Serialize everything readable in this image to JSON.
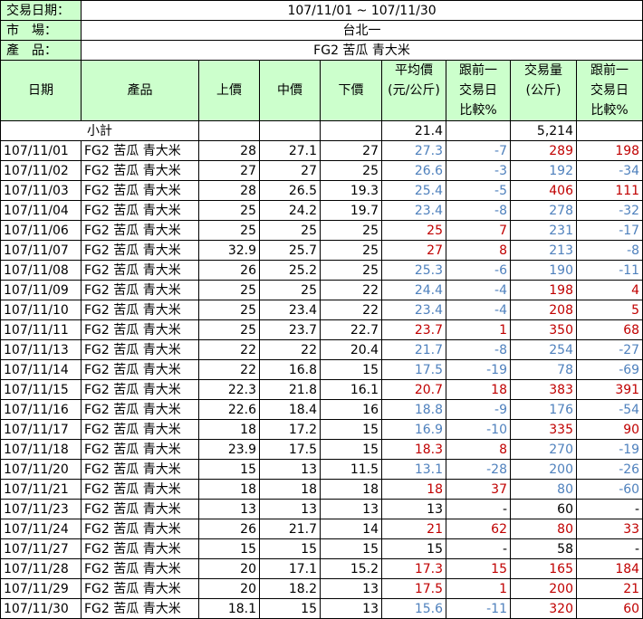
{
  "meta": {
    "date_label": "交易日期：",
    "date_value": "107/11/01 ~ 107/11/30",
    "market_label": "市　場：",
    "market_value": "台北一",
    "product_label": "產　品：",
    "product_value": "FG2 苦瓜 青大米"
  },
  "headers": {
    "date": "日期",
    "product": "產品",
    "high": "上價",
    "mid": "中價",
    "low": "下價",
    "avg": [
      "平均價",
      "(元/公斤)"
    ],
    "avg_change": [
      "跟前一",
      "交易日",
      "比較%"
    ],
    "volume": [
      "交易量",
      "(公斤)"
    ],
    "vol_change": [
      "跟前一",
      "交易日",
      "比較%"
    ]
  },
  "subtotal": {
    "label": "小計",
    "avg": "21.4",
    "volume": "5,214"
  },
  "rows": [
    {
      "date": "107/11/01",
      "product": "FG2 苦瓜 青大米",
      "high": "28",
      "mid": "27.1",
      "low": "27",
      "avg": "27.3",
      "avg_chg": "-7",
      "vol": "289",
      "vol_chg": "198"
    },
    {
      "date": "107/11/02",
      "product": "FG2 苦瓜 青大米",
      "high": "27",
      "mid": "27",
      "low": "25",
      "avg": "26.6",
      "avg_chg": "-3",
      "vol": "192",
      "vol_chg": "-34"
    },
    {
      "date": "107/11/03",
      "product": "FG2 苦瓜 青大米",
      "high": "28",
      "mid": "26.5",
      "low": "19.3",
      "avg": "25.4",
      "avg_chg": "-5",
      "vol": "406",
      "vol_chg": "111"
    },
    {
      "date": "107/11/04",
      "product": "FG2 苦瓜 青大米",
      "high": "25",
      "mid": "24.2",
      "low": "19.7",
      "avg": "23.4",
      "avg_chg": "-8",
      "vol": "278",
      "vol_chg": "-32"
    },
    {
      "date": "107/11/06",
      "product": "FG2 苦瓜 青大米",
      "high": "25",
      "mid": "25",
      "low": "25",
      "avg": "25",
      "avg_chg": "7",
      "vol": "231",
      "vol_chg": "-17"
    },
    {
      "date": "107/11/07",
      "product": "FG2 苦瓜 青大米",
      "high": "32.9",
      "mid": "25.7",
      "low": "25",
      "avg": "27",
      "avg_chg": "8",
      "vol": "213",
      "vol_chg": "-8"
    },
    {
      "date": "107/11/08",
      "product": "FG2 苦瓜 青大米",
      "high": "26",
      "mid": "25.2",
      "low": "25",
      "avg": "25.3",
      "avg_chg": "-6",
      "vol": "190",
      "vol_chg": "-11"
    },
    {
      "date": "107/11/09",
      "product": "FG2 苦瓜 青大米",
      "high": "25",
      "mid": "25",
      "low": "22",
      "avg": "24.4",
      "avg_chg": "-4",
      "vol": "198",
      "vol_chg": "4"
    },
    {
      "date": "107/11/10",
      "product": "FG2 苦瓜 青大米",
      "high": "25",
      "mid": "23.4",
      "low": "22",
      "avg": "23.4",
      "avg_chg": "-4",
      "vol": "208",
      "vol_chg": "5"
    },
    {
      "date": "107/11/11",
      "product": "FG2 苦瓜 青大米",
      "high": "25",
      "mid": "23.7",
      "low": "22.7",
      "avg": "23.7",
      "avg_chg": "1",
      "vol": "350",
      "vol_chg": "68"
    },
    {
      "date": "107/11/13",
      "product": "FG2 苦瓜 青大米",
      "high": "22",
      "mid": "22",
      "low": "20.4",
      "avg": "21.7",
      "avg_chg": "-8",
      "vol": "254",
      "vol_chg": "-27"
    },
    {
      "date": "107/11/14",
      "product": "FG2 苦瓜 青大米",
      "high": "22",
      "mid": "16.8",
      "low": "15",
      "avg": "17.5",
      "avg_chg": "-19",
      "vol": "78",
      "vol_chg": "-69"
    },
    {
      "date": "107/11/15",
      "product": "FG2 苦瓜 青大米",
      "high": "22.3",
      "mid": "21.8",
      "low": "16.1",
      "avg": "20.7",
      "avg_chg": "18",
      "vol": "383",
      "vol_chg": "391"
    },
    {
      "date": "107/11/16",
      "product": "FG2 苦瓜 青大米",
      "high": "22.6",
      "mid": "18.4",
      "low": "16",
      "avg": "18.8",
      "avg_chg": "-9",
      "vol": "176",
      "vol_chg": "-54"
    },
    {
      "date": "107/11/17",
      "product": "FG2 苦瓜 青大米",
      "high": "18",
      "mid": "17.2",
      "low": "15",
      "avg": "16.9",
      "avg_chg": "-10",
      "vol": "335",
      "vol_chg": "90"
    },
    {
      "date": "107/11/18",
      "product": "FG2 苦瓜 青大米",
      "high": "23.9",
      "mid": "17.5",
      "low": "15",
      "avg": "18.3",
      "avg_chg": "8",
      "vol": "270",
      "vol_chg": "-19"
    },
    {
      "date": "107/11/20",
      "product": "FG2 苦瓜 青大米",
      "high": "15",
      "mid": "13",
      "low": "11.5",
      "avg": "13.1",
      "avg_chg": "-28",
      "vol": "200",
      "vol_chg": "-26"
    },
    {
      "date": "107/11/21",
      "product": "FG2 苦瓜 青大米",
      "high": "18",
      "mid": "18",
      "low": "18",
      "avg": "18",
      "avg_chg": "37",
      "vol": "80",
      "vol_chg": "-60"
    },
    {
      "date": "107/11/23",
      "product": "FG2 苦瓜 青大米",
      "high": "13",
      "mid": "13",
      "low": "13",
      "avg": "13",
      "avg_chg": "-",
      "vol": "60",
      "vol_chg": "-"
    },
    {
      "date": "107/11/24",
      "product": "FG2 苦瓜 青大米",
      "high": "26",
      "mid": "21.7",
      "low": "14",
      "avg": "21",
      "avg_chg": "62",
      "vol": "80",
      "vol_chg": "33"
    },
    {
      "date": "107/11/27",
      "product": "FG2 苦瓜 青大米",
      "high": "15",
      "mid": "15",
      "low": "15",
      "avg": "15",
      "avg_chg": "-",
      "vol": "58",
      "vol_chg": "-"
    },
    {
      "date": "107/11/28",
      "product": "FG2 苦瓜 青大米",
      "high": "20",
      "mid": "17.1",
      "low": "15.2",
      "avg": "17.3",
      "avg_chg": "15",
      "vol": "165",
      "vol_chg": "184"
    },
    {
      "date": "107/11/29",
      "product": "FG2 苦瓜 青大米",
      "high": "20",
      "mid": "18.2",
      "low": "13",
      "avg": "17.5",
      "avg_chg": "1",
      "vol": "200",
      "vol_chg": "21"
    },
    {
      "date": "107/11/30",
      "product": "FG2 苦瓜 青大米",
      "high": "18.1",
      "mid": "15",
      "low": "13",
      "avg": "15.6",
      "avg_chg": "-11",
      "vol": "320",
      "vol_chg": "60"
    }
  ],
  "colors": {
    "header_bg": "#ccffcc",
    "up": "#c00000",
    "down": "#4f81bd"
  }
}
